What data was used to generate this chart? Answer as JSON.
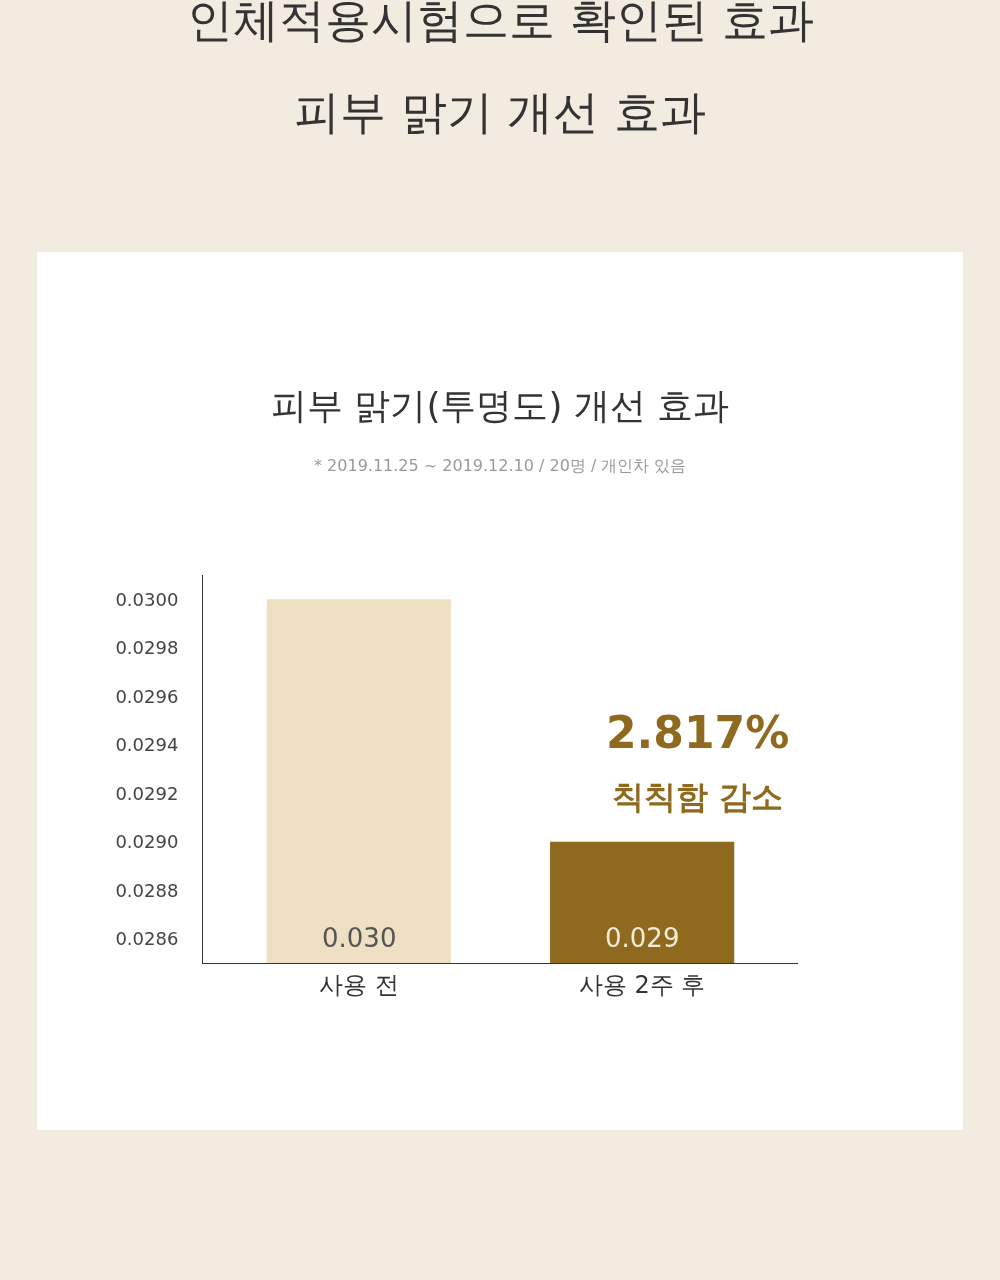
{
  "chart_data": {
    "type": "bar",
    "title": "피부 맑기(투명도) 개선 효과",
    "subtitle": "* 2019.11.25 ~ 2019.12.10 / 20명 / 개인차 있음",
    "annotations": [
      "인체적용시험으로 확인된 효과",
      "피부 맑기 개선 효과",
      "2.817%",
      "칙칙함 감소"
    ],
    "categories": [
      "사용 전",
      "사용 2주 후"
    ],
    "values": [
      0.03,
      0.029
    ],
    "colors": [
      "#efe0c4",
      "#8f6a1e"
    ],
    "value_labels": [
      "0.030",
      "0.029"
    ],
    "ylim": [
      0.0285,
      0.0301
    ],
    "yticks": [
      {
        "value": 0.03,
        "label": "0.0300"
      },
      0.0298,
      0.0296,
      0.0294,
      0.0292,
      {
        "value": 0.029,
        "label": "0.0290"
      },
      0.0288,
      0.0286
    ],
    "legend": false
  }
}
